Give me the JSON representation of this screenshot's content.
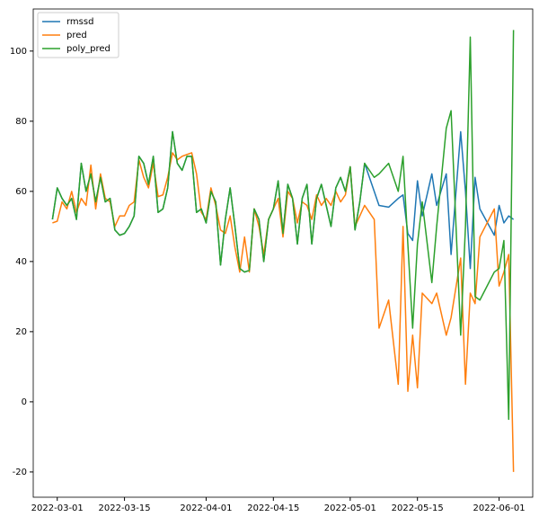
{
  "chart_data": {
    "type": "line",
    "x": [
      "2022-02-28",
      "2022-03-01",
      "2022-03-02",
      "2022-03-03",
      "2022-03-04",
      "2022-03-05",
      "2022-03-06",
      "2022-03-07",
      "2022-03-08",
      "2022-03-09",
      "2022-03-10",
      "2022-03-11",
      "2022-03-12",
      "2022-03-13",
      "2022-03-14",
      "2022-03-15",
      "2022-03-16",
      "2022-03-17",
      "2022-03-18",
      "2022-03-19",
      "2022-03-20",
      "2022-03-21",
      "2022-03-22",
      "2022-03-23",
      "2022-03-24",
      "2022-03-25",
      "2022-03-26",
      "2022-03-27",
      "2022-03-28",
      "2022-03-29",
      "2022-03-30",
      "2022-03-31",
      "2022-04-01",
      "2022-04-02",
      "2022-04-03",
      "2022-04-04",
      "2022-04-05",
      "2022-04-06",
      "2022-04-07",
      "2022-04-08",
      "2022-04-09",
      "2022-04-10",
      "2022-04-11",
      "2022-04-12",
      "2022-04-13",
      "2022-04-14",
      "2022-04-15",
      "2022-04-16",
      "2022-04-17",
      "2022-04-18",
      "2022-04-19",
      "2022-04-20",
      "2022-04-21",
      "2022-04-22",
      "2022-04-23",
      "2022-04-24",
      "2022-04-25",
      "2022-04-26",
      "2022-04-27",
      "2022-04-28",
      "2022-04-29",
      "2022-04-30",
      "2022-05-01",
      "2022-05-02",
      "2022-05-03",
      "2022-05-04",
      "2022-05-06",
      "2022-05-07",
      "2022-05-09",
      "2022-05-11",
      "2022-05-12",
      "2022-05-13",
      "2022-05-14",
      "2022-05-15",
      "2022-05-16",
      "2022-05-18",
      "2022-05-19",
      "2022-05-21",
      "2022-05-22",
      "2022-05-24",
      "2022-05-25",
      "2022-05-26",
      "2022-05-27",
      "2022-05-28",
      "2022-05-31",
      "2022-06-01",
      "2022-06-02",
      "2022-06-03",
      "2022-06-04"
    ],
    "series": [
      {
        "name": "rmssd",
        "color": "#1f77b4",
        "values": [
          52,
          61,
          58,
          56,
          58,
          52,
          68,
          60,
          65,
          57,
          64,
          57,
          58,
          49,
          47.5,
          48,
          50,
          53,
          70,
          68,
          62,
          70,
          54,
          55,
          61,
          77,
          68,
          66,
          70,
          70,
          54,
          55,
          51,
          60,
          57,
          39,
          52,
          61,
          50,
          38,
          37,
          37.5,
          55,
          52,
          40,
          52,
          55,
          63,
          48,
          62,
          58,
          45,
          58,
          62,
          45,
          58,
          62,
          56,
          50,
          61,
          64,
          60,
          67,
          49,
          57,
          68,
          60,
          56,
          55.5,
          58,
          59,
          48,
          46,
          63,
          53,
          65,
          56,
          65,
          42,
          77,
          60,
          38,
          64,
          55,
          47.5,
          56,
          51,
          53,
          52
        ]
      },
      {
        "name": "pred",
        "color": "#ff7f0e",
        "values": [
          51,
          51.5,
          57,
          55,
          60,
          54,
          58,
          56,
          67.5,
          55,
          65,
          58,
          57,
          50,
          53,
          53,
          56,
          57,
          69,
          64,
          61,
          68,
          58.5,
          59,
          64,
          71,
          69,
          70,
          70.5,
          71,
          65,
          54,
          52,
          61,
          56,
          49,
          48,
          53,
          44,
          37,
          47,
          37,
          55,
          50,
          42,
          52,
          55,
          58,
          47,
          60,
          58,
          51,
          57,
          56,
          52,
          59,
          56,
          58,
          56,
          60,
          57,
          59,
          67,
          50,
          53,
          56,
          52,
          21,
          29,
          5,
          50,
          3,
          19,
          4,
          31,
          28,
          31,
          19,
          24,
          41,
          5,
          31,
          28,
          47,
          55,
          33,
          37,
          42,
          -20
        ]
      },
      {
        "name": "poly_pred",
        "color": "#2ca02c",
        "values": [
          52,
          61,
          58,
          56,
          58,
          52,
          68,
          60,
          65,
          57,
          64,
          57,
          58,
          49,
          47.5,
          48,
          50,
          53,
          70,
          68,
          62,
          70,
          54,
          55,
          61,
          77,
          68,
          66,
          70,
          70,
          54,
          55,
          51,
          60,
          57,
          39,
          52,
          61,
          50,
          38,
          37,
          37.5,
          55,
          52,
          40,
          52,
          55,
          63,
          48,
          62,
          58,
          45,
          58,
          62,
          45,
          58,
          62,
          56,
          50,
          61,
          64,
          60,
          67,
          49,
          57,
          68,
          64,
          65,
          68,
          60,
          70,
          45,
          21,
          45,
          57,
          34,
          50,
          78,
          83,
          19,
          50,
          104,
          30,
          29,
          37,
          38,
          46,
          -5,
          106
        ]
      }
    ],
    "xlim": [
      "2022-02-24",
      "2022-06-08"
    ],
    "xticks": [
      "2022-03-01",
      "2022-03-15",
      "2022-04-01",
      "2022-04-15",
      "2022-05-01",
      "2022-05-15",
      "2022-06-01"
    ],
    "ylim": [
      -27.2,
      112
    ],
    "yticks": [
      -20,
      0,
      20,
      40,
      60,
      80,
      100
    ],
    "grid": false,
    "legend": "upper left"
  }
}
